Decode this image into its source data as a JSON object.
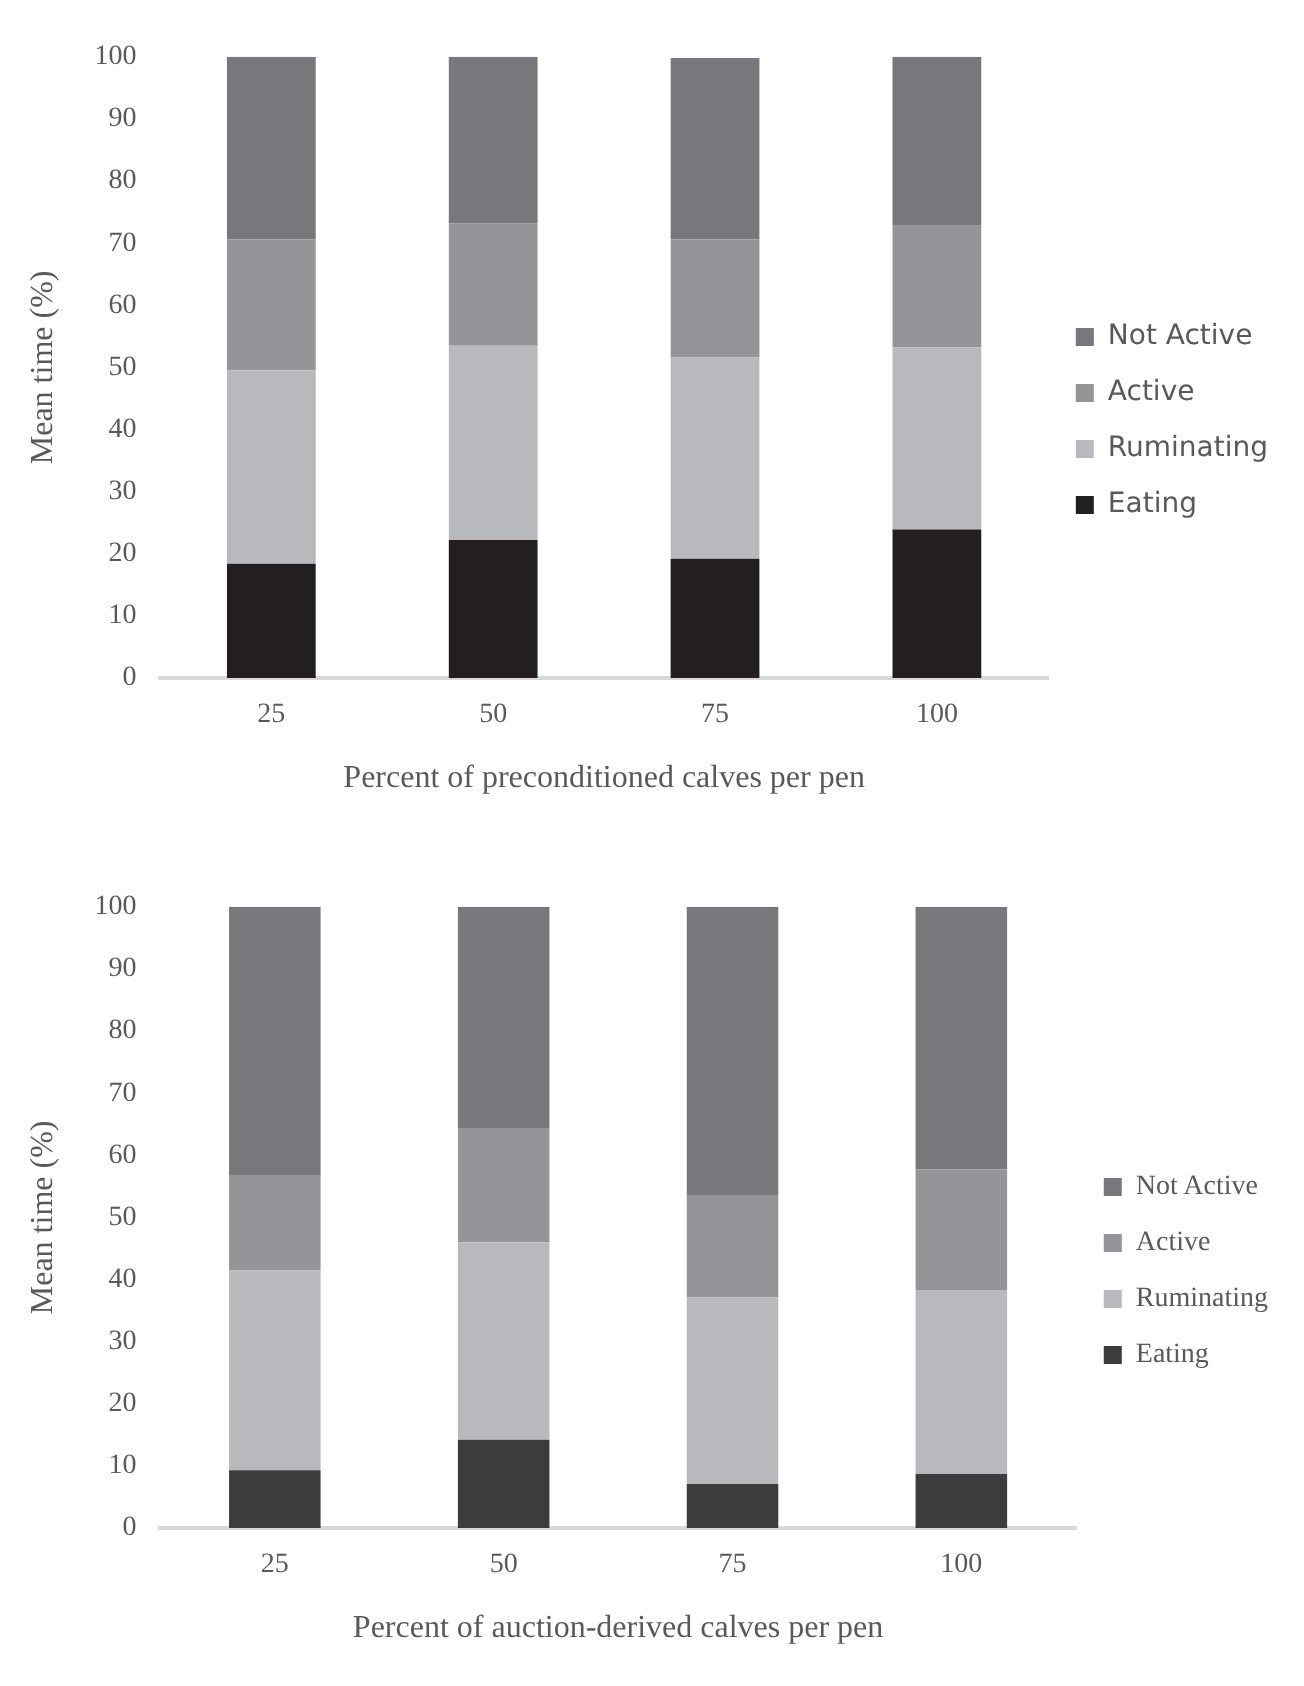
{
  "chart_data": [
    {
      "type": "bar",
      "stacked": true,
      "xlabel": "Percent of preconditioned calves per pen",
      "ylabel": "Mean time (%)",
      "categories": [
        "25",
        "50",
        "75",
        "100"
      ],
      "ylim": [
        0,
        100
      ],
      "yticks": [
        0,
        10,
        20,
        30,
        40,
        50,
        60,
        70,
        80,
        90,
        100
      ],
      "grid": false,
      "legend": "right",
      "series": [
        {
          "name": "Eating",
          "color": "#231f20",
          "values": [
            18.4,
            22.2,
            19.2,
            23.9
          ]
        },
        {
          "name": "Ruminating",
          "color": "#b8b9bc",
          "values": [
            31.1,
            31.3,
            32.4,
            29.3
          ]
        },
        {
          "name": "Active",
          "color": "#939598",
          "values": [
            21.1,
            19.7,
            19.0,
            19.6
          ]
        },
        {
          "name": "Not Active",
          "color": "#77787b",
          "values": [
            29.4,
            26.8,
            29.2,
            27.2
          ]
        }
      ]
    },
    {
      "type": "bar",
      "stacked": true,
      "xlabel": "Percent of auction-derived calves per pen",
      "ylabel": "Mean time (%)",
      "categories": [
        "25",
        "50",
        "75",
        "100"
      ],
      "ylim": [
        0,
        100
      ],
      "yticks": [
        0,
        10,
        20,
        30,
        40,
        50,
        60,
        70,
        80,
        90,
        100
      ],
      "grid": false,
      "legend": "right",
      "series": [
        {
          "name": "Eating",
          "color": "#3c3c3c",
          "values": [
            9.3,
            14.2,
            7.1,
            8.7
          ]
        },
        {
          "name": "Ruminating",
          "color": "#b8b9bc",
          "values": [
            32.2,
            31.8,
            30.0,
            29.6
          ]
        },
        {
          "name": "Active",
          "color": "#939598",
          "values": [
            15.2,
            18.4,
            16.5,
            19.4
          ]
        },
        {
          "name": "Not Active",
          "color": "#77787b",
          "values": [
            43.3,
            35.6,
            46.4,
            42.3
          ]
        }
      ]
    }
  ]
}
